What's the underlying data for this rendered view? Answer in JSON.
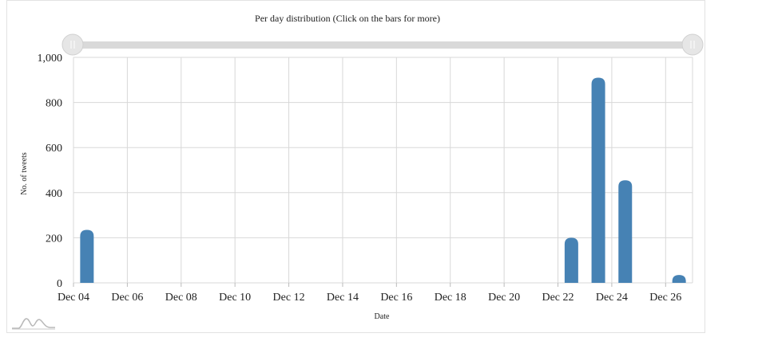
{
  "chart_data": {
    "type": "bar",
    "title": "Per day distribution (Click on the bars for more)",
    "xlabel": "Date",
    "ylabel": "No. of tweets",
    "ylim": [
      0,
      1000
    ],
    "yticks": [
      "0",
      "200",
      "400",
      "600",
      "800",
      "1,000"
    ],
    "xticks": [
      "Dec 04",
      "Dec 06",
      "Dec 08",
      "Dec 10",
      "Dec 12",
      "Dec 14",
      "Dec 16",
      "Dec 18",
      "Dec 20",
      "Dec 22",
      "Dec 24",
      "Dec 26"
    ],
    "x_start_day": 4,
    "x_end_day": 27,
    "grid": true,
    "categories": [
      "Dec 04",
      "Dec 22",
      "Dec 23",
      "Dec 24",
      "Dec 26"
    ],
    "values": [
      235,
      200,
      910,
      455,
      35
    ],
    "day_of_month": [
      4,
      22,
      23,
      24,
      26
    ],
    "bar_color": "#4682b4"
  },
  "navigator": {
    "left_handle_icon": "grip-handle-icon",
    "right_handle_icon": "grip-handle-icon"
  },
  "logo_icon": "chart-logo-icon"
}
